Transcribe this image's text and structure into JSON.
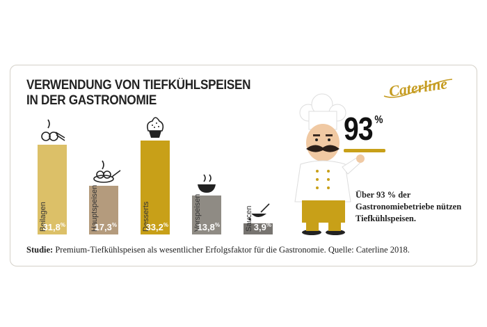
{
  "title_lines": [
    "VERWENDUNG VON TIEFKÜHLSPEISEN",
    "IN DER GASTRONOMIE"
  ],
  "logo_text": "Caterline",
  "highlight": {
    "value": "93",
    "unit": "%",
    "text": "Über 93 % der Gastronomiebetriebe nützen Tiefkühlspeisen."
  },
  "footer": {
    "label": "Studie:",
    "text": "Premium-Tiefkühlspeisen als wesentlicher Erfolgsfaktor für die Gastronomie. Quelle: Caterline 2018."
  },
  "colors": {
    "accent": "#c8a018",
    "card_border": "#d4d0c8"
  },
  "chart_data": {
    "type": "bar",
    "title": "VERWENDUNG VON TIEFKÜHLSPEISEN IN DER GASTRONOMIE",
    "categories": [
      "Beilagen",
      "Hauptspeisen",
      "Desserts",
      "Vorspeisen",
      "Saucen"
    ],
    "values": [
      31.8,
      17.3,
      33.2,
      13.8,
      3.9
    ],
    "value_labels": [
      "31,8",
      "17,3",
      "33,2",
      "13,8",
      "3,9"
    ],
    "unit": "%",
    "bar_colors": [
      "#dcc068",
      "#b49b7d",
      "#c8a018",
      "#8f8b84",
      "#777470"
    ],
    "icons": [
      "side-dish-icon",
      "main-dish-icon",
      "dessert-icon",
      "soup-icon",
      "sauce-icon"
    ],
    "ylim": [
      0,
      33.2
    ],
    "grid": false,
    "legend": "none"
  }
}
